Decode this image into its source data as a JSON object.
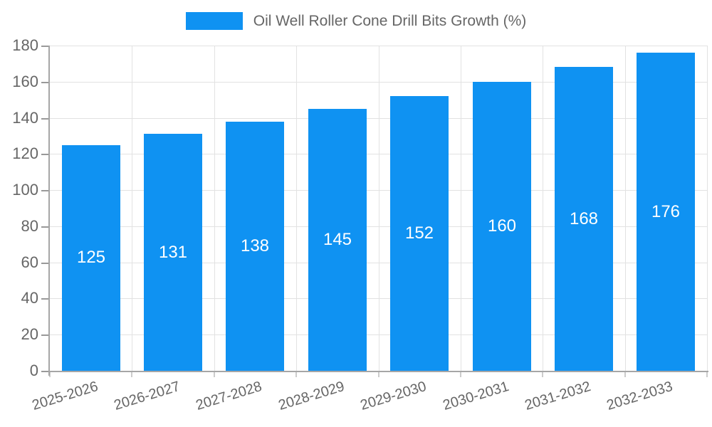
{
  "chart_data": {
    "type": "bar",
    "title": "",
    "legend": "Oil Well Roller Cone Drill Bits Growth (%)",
    "legend_position": "top-center",
    "categories": [
      "2025-2026",
      "2026-2027",
      "2027-2028",
      "2028-2029",
      "2029-2030",
      "2030-2031",
      "2031-2032",
      "2032-2033"
    ],
    "values": [
      125,
      131,
      138,
      145,
      152,
      160,
      168,
      176
    ],
    "bar_labels_visible": true,
    "bar_label_position": "inside-middle",
    "xlabel": "",
    "ylabel": "",
    "ylim": [
      0,
      180
    ],
    "ytick_step": 20,
    "yticks": [
      0,
      20,
      40,
      60,
      80,
      100,
      120,
      140,
      160,
      180
    ],
    "xlabel_rotation_deg": -17,
    "grid": "horizontal-and-vertical",
    "colors": {
      "bar": "#0F92F2",
      "grid": "#e2e2e2",
      "axis": "#a6a6a6",
      "tick_y": "#999999",
      "tick_x": "#cccccc",
      "text": "#666666",
      "bar_label": "#ffffff",
      "background": "#ffffff"
    }
  }
}
